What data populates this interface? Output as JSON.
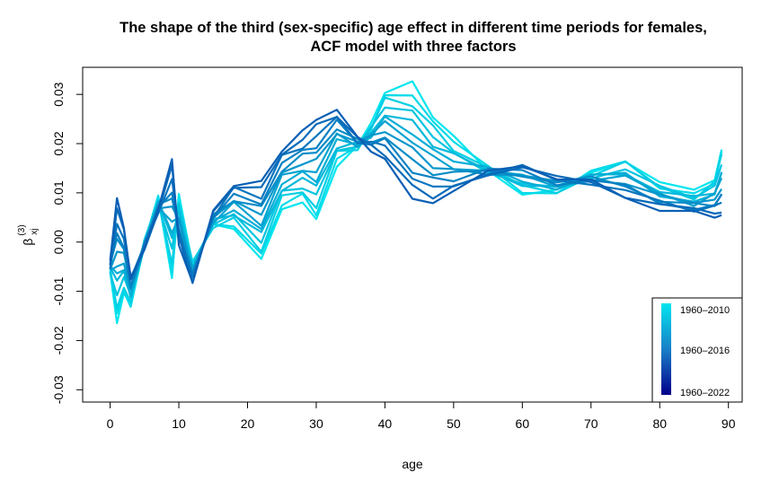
{
  "chart_data": {
    "type": "line",
    "title_line1": "The shape of the third (sex-specific) age effect in different time periods for females,",
    "title_line2": "ACF model with three factors",
    "xlabel": "age",
    "ylabel_base": "β",
    "ylabel_sub": "xj",
    "ylabel_sup": "(3)",
    "xlim": [
      -4,
      92
    ],
    "ylim": [
      -0.0325,
      0.0355
    ],
    "xticks": [
      0,
      10,
      20,
      30,
      40,
      50,
      60,
      70,
      80,
      90
    ],
    "yticks": [
      -0.03,
      -0.02,
      -0.01,
      0.0,
      0.01,
      0.02,
      0.03
    ],
    "ytick_labels": [
      "-0.03",
      "-0.02",
      "-0.01",
      "0.00",
      "0.01",
      "0.02",
      "0.03"
    ],
    "legend": {
      "placement": "bottom-right",
      "labels": [
        "1960–2010",
        "1960–2016",
        "1960–2022"
      ],
      "gradient_colors": [
        "#00e5ee",
        "#1a80c8",
        "#00008b"
      ]
    },
    "colors": {
      "earliest": "#00e5ee",
      "latest": "#0a5fb4"
    },
    "series_count": 13,
    "key_ages": [
      0,
      1,
      2,
      3,
      5,
      7,
      9,
      10,
      12,
      15,
      18,
      22,
      25,
      28,
      30,
      33,
      36,
      38,
      40,
      44,
      47,
      50,
      55,
      60,
      65,
      70,
      75,
      80,
      85,
      88,
      89
    ],
    "first_period_values": [
      -0.006,
      -0.017,
      -0.011,
      -0.013,
      0.0,
      0.009,
      -0.008,
      0.0095,
      -0.004,
      0.003,
      0.003,
      -0.004,
      0.007,
      0.008,
      0.004,
      0.016,
      0.019,
      0.024,
      0.031,
      0.032,
      0.026,
      0.021,
      0.015,
      0.01,
      0.01,
      0.014,
      0.017,
      0.012,
      0.01,
      0.013,
      0.0195
    ],
    "last_period_values": [
      -0.0045,
      0.0085,
      0.003,
      -0.007,
      -0.001,
      0.006,
      0.017,
      0.0,
      -0.008,
      0.006,
      0.012,
      0.012,
      0.019,
      0.022,
      0.025,
      0.027,
      0.021,
      0.019,
      0.017,
      0.009,
      0.008,
      0.01,
      0.014,
      0.016,
      0.013,
      0.012,
      0.009,
      0.007,
      0.006,
      0.0055,
      0.0055
    ]
  }
}
